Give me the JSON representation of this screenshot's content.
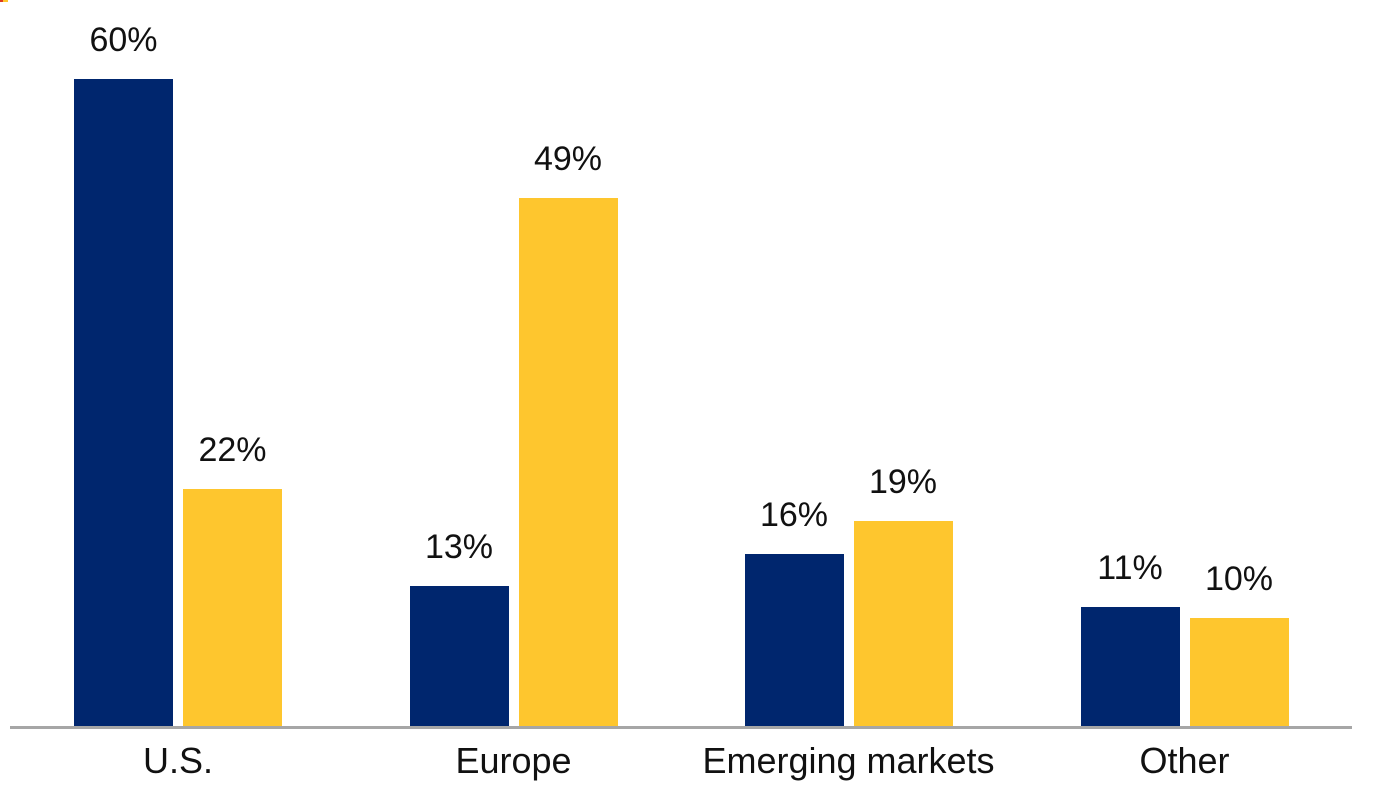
{
  "chart_data": {
    "type": "bar",
    "title": "",
    "xlabel": "",
    "ylabel": "",
    "categories": [
      "U.S.",
      "Europe",
      "Emerging markets",
      "Other"
    ],
    "series": [
      {
        "name": "dark-navy-bars",
        "color": "#00266E",
        "values": [
          60,
          13,
          16,
          11
        ],
        "labels": [
          "60%",
          "13%",
          "16%",
          "11%"
        ]
      },
      {
        "name": "gold-bars",
        "color": "#FEC62E",
        "values": [
          22,
          49,
          19,
          10
        ],
        "labels": [
          "22%",
          "49%",
          "19%",
          "10%"
        ]
      }
    ],
    "ylim": [
      0,
      62
    ],
    "grid": false,
    "legend_position": "none",
    "value_labels_shown": true,
    "axis_line_color": "#A6A6A6",
    "label_text_color": "#111111",
    "background_color": "#FFFFFF"
  },
  "artifact_mark": {
    "description": "tiny red and yellow fragment at top-left corner",
    "red_color": "#DC3A1F",
    "yellow_color": "#FFC62E"
  }
}
